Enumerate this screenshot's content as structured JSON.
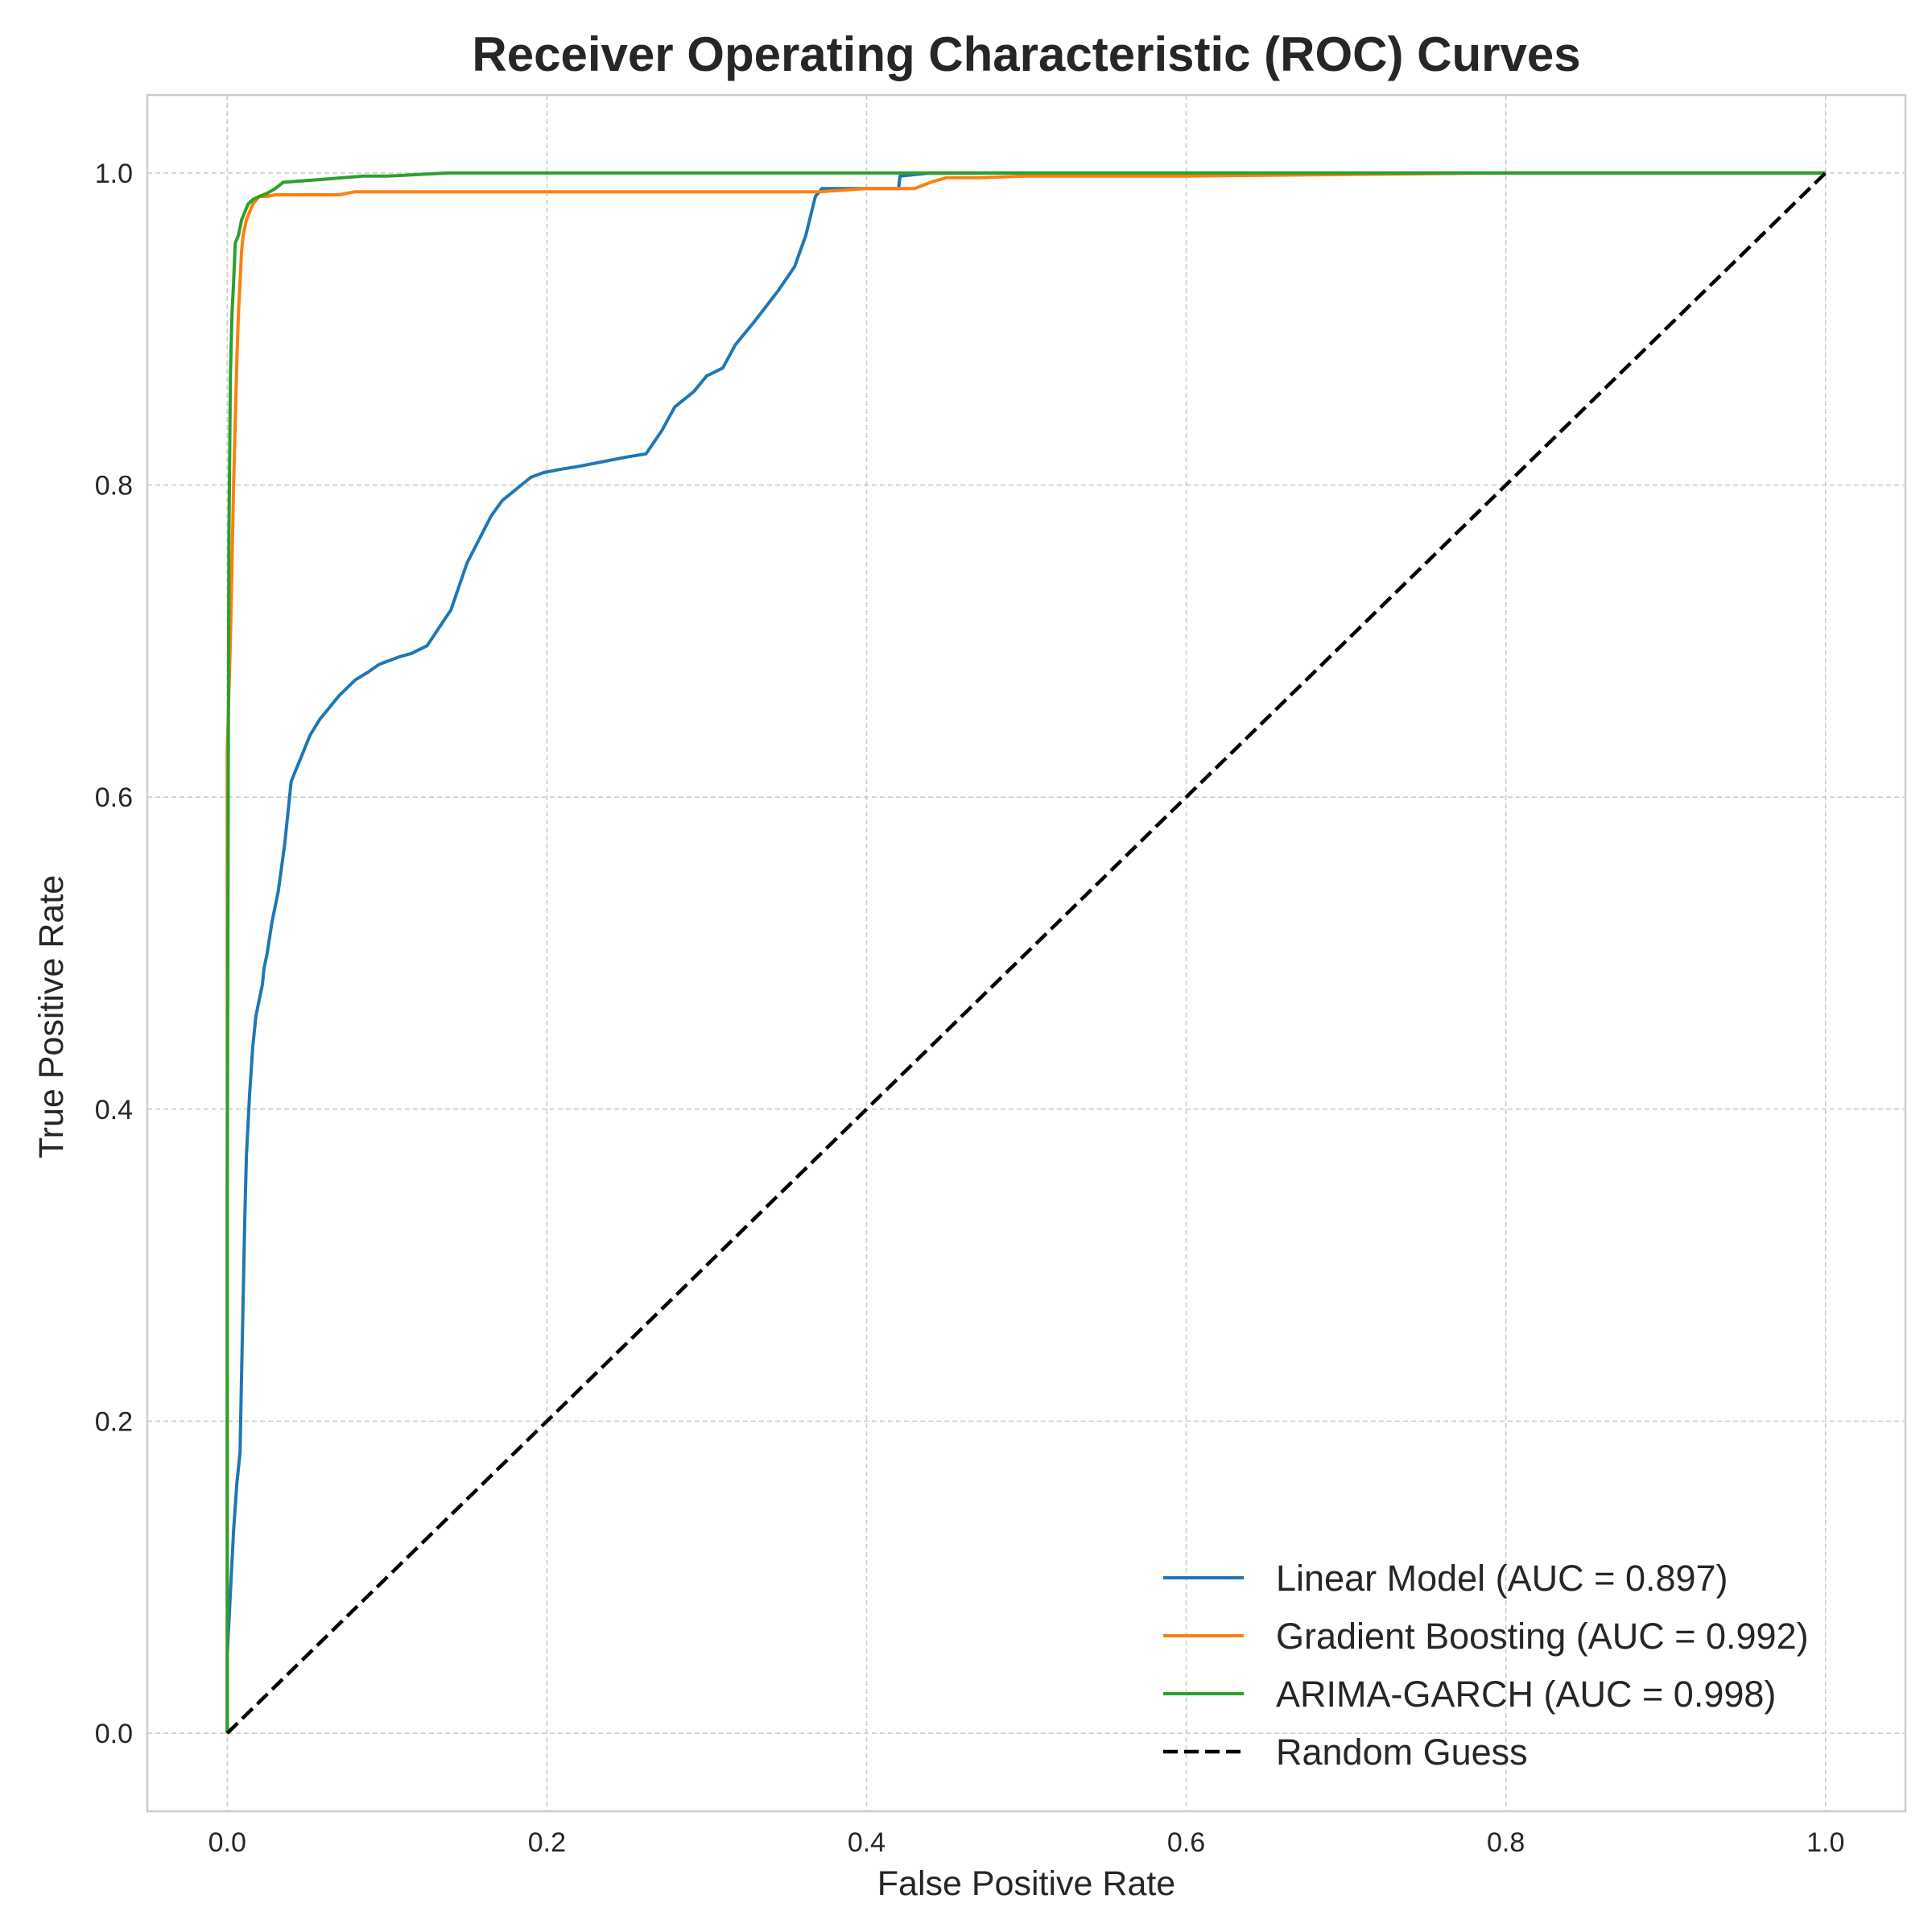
{
  "chart_data": {
    "type": "line",
    "title": "Receiver Operating Characteristic (ROC) Curves",
    "xlabel": "False Positive Rate",
    "ylabel": "True Positive Rate",
    "xlim": [
      -0.05,
      1.05
    ],
    "ylim": [
      -0.05,
      1.05
    ],
    "xticks": [
      0.0,
      0.2,
      0.4,
      0.6,
      0.8,
      1.0
    ],
    "xtick_labels": [
      "0.0",
      "0.2",
      "0.4",
      "0.6",
      "0.8",
      "1.0"
    ],
    "yticks": [
      0.0,
      0.2,
      0.4,
      0.6,
      0.8,
      1.0
    ],
    "ytick_labels": [
      "0.0",
      "0.2",
      "0.4",
      "0.6",
      "0.8",
      "1.0"
    ],
    "grid": true,
    "legend_position": "lower-right",
    "series": [
      {
        "name": "Linear Model (AUC = 0.897)",
        "color": "#1f77b4",
        "style": "solid",
        "x": [
          0.0,
          0.0,
          0.002,
          0.004,
          0.006,
          0.008,
          0.009,
          0.01,
          0.011,
          0.012,
          0.013,
          0.014,
          0.016,
          0.018,
          0.02,
          0.022,
          0.023,
          0.025,
          0.028,
          0.032,
          0.036,
          0.04,
          0.044,
          0.048,
          0.05,
          0.052,
          0.055,
          0.058,
          0.062,
          0.066,
          0.07,
          0.075,
          0.08,
          0.088,
          0.095,
          0.1,
          0.108,
          0.115,
          0.125,
          0.14,
          0.15,
          0.165,
          0.172,
          0.178,
          0.184,
          0.19,
          0.198,
          0.208,
          0.22,
          0.235,
          0.25,
          0.262,
          0.272,
          0.28,
          0.292,
          0.3,
          0.31,
          0.318,
          0.33,
          0.345,
          0.355,
          0.362,
          0.368,
          0.372,
          0.38,
          0.4,
          0.42,
          0.421,
          0.44,
          0.46,
          0.48,
          0.5,
          0.6,
          0.7,
          0.8,
          0.9,
          1.0
        ],
        "y": [
          0.0,
          0.05,
          0.09,
          0.13,
          0.16,
          0.18,
          0.23,
          0.28,
          0.33,
          0.37,
          0.39,
          0.41,
          0.44,
          0.46,
          0.47,
          0.48,
          0.49,
          0.5,
          0.52,
          0.54,
          0.57,
          0.61,
          0.62,
          0.63,
          0.635,
          0.64,
          0.645,
          0.65,
          0.655,
          0.66,
          0.665,
          0.67,
          0.675,
          0.68,
          0.685,
          0.687,
          0.69,
          0.692,
          0.697,
          0.72,
          0.75,
          0.78,
          0.79,
          0.795,
          0.8,
          0.805,
          0.808,
          0.81,
          0.812,
          0.815,
          0.818,
          0.82,
          0.835,
          0.85,
          0.86,
          0.87,
          0.875,
          0.89,
          0.905,
          0.925,
          0.94,
          0.96,
          0.985,
          0.99,
          0.99,
          0.99,
          0.99,
          0.998,
          1.0,
          1.0,
          1.0,
          1.0,
          1.0,
          1.0,
          1.0,
          1.0,
          1.0
        ]
      },
      {
        "name": "Gradient Boosting (AUC = 0.992)",
        "color": "#ff7f0e",
        "style": "solid",
        "x": [
          0.0,
          0.0,
          0.002,
          0.003,
          0.004,
          0.005,
          0.006,
          0.007,
          0.008,
          0.009,
          0.01,
          0.012,
          0.014,
          0.016,
          0.02,
          0.025,
          0.03,
          0.05,
          0.07,
          0.08,
          0.1,
          0.2,
          0.3,
          0.37,
          0.4,
          0.43,
          0.44,
          0.45,
          0.47,
          0.5,
          0.6,
          0.7,
          0.8,
          0.9,
          1.0
        ],
        "y": [
          0.0,
          0.63,
          0.7,
          0.75,
          0.8,
          0.84,
          0.88,
          0.91,
          0.93,
          0.95,
          0.96,
          0.97,
          0.975,
          0.98,
          0.985,
          0.985,
          0.986,
          0.986,
          0.986,
          0.988,
          0.988,
          0.988,
          0.988,
          0.988,
          0.99,
          0.99,
          0.994,
          0.997,
          0.997,
          0.998,
          0.998,
          0.999,
          1.0,
          1.0,
          1.0
        ]
      },
      {
        "name": "ARIMA-GARCH (AUC = 0.998)",
        "color": "#2ca02c",
        "style": "solid",
        "x": [
          0.0,
          0.0,
          0.001,
          0.002,
          0.003,
          0.004,
          0.005,
          0.007,
          0.009,
          0.011,
          0.013,
          0.016,
          0.02,
          0.025,
          0.03,
          0.035,
          0.06,
          0.085,
          0.1,
          0.138,
          0.2,
          0.3,
          0.4,
          0.5,
          0.6,
          0.7,
          0.8,
          0.9,
          1.0
        ],
        "y": [
          0.0,
          0.35,
          0.76,
          0.87,
          0.91,
          0.93,
          0.955,
          0.96,
          0.97,
          0.975,
          0.98,
          0.983,
          0.985,
          0.987,
          0.99,
          0.994,
          0.996,
          0.998,
          0.998,
          1.0,
          1.0,
          1.0,
          1.0,
          1.0,
          1.0,
          1.0,
          1.0,
          1.0,
          1.0
        ]
      },
      {
        "name": "Random Guess",
        "color": "#000000",
        "style": "dashed",
        "x": [
          0.0,
          1.0
        ],
        "y": [
          0.0,
          1.0
        ]
      }
    ]
  }
}
